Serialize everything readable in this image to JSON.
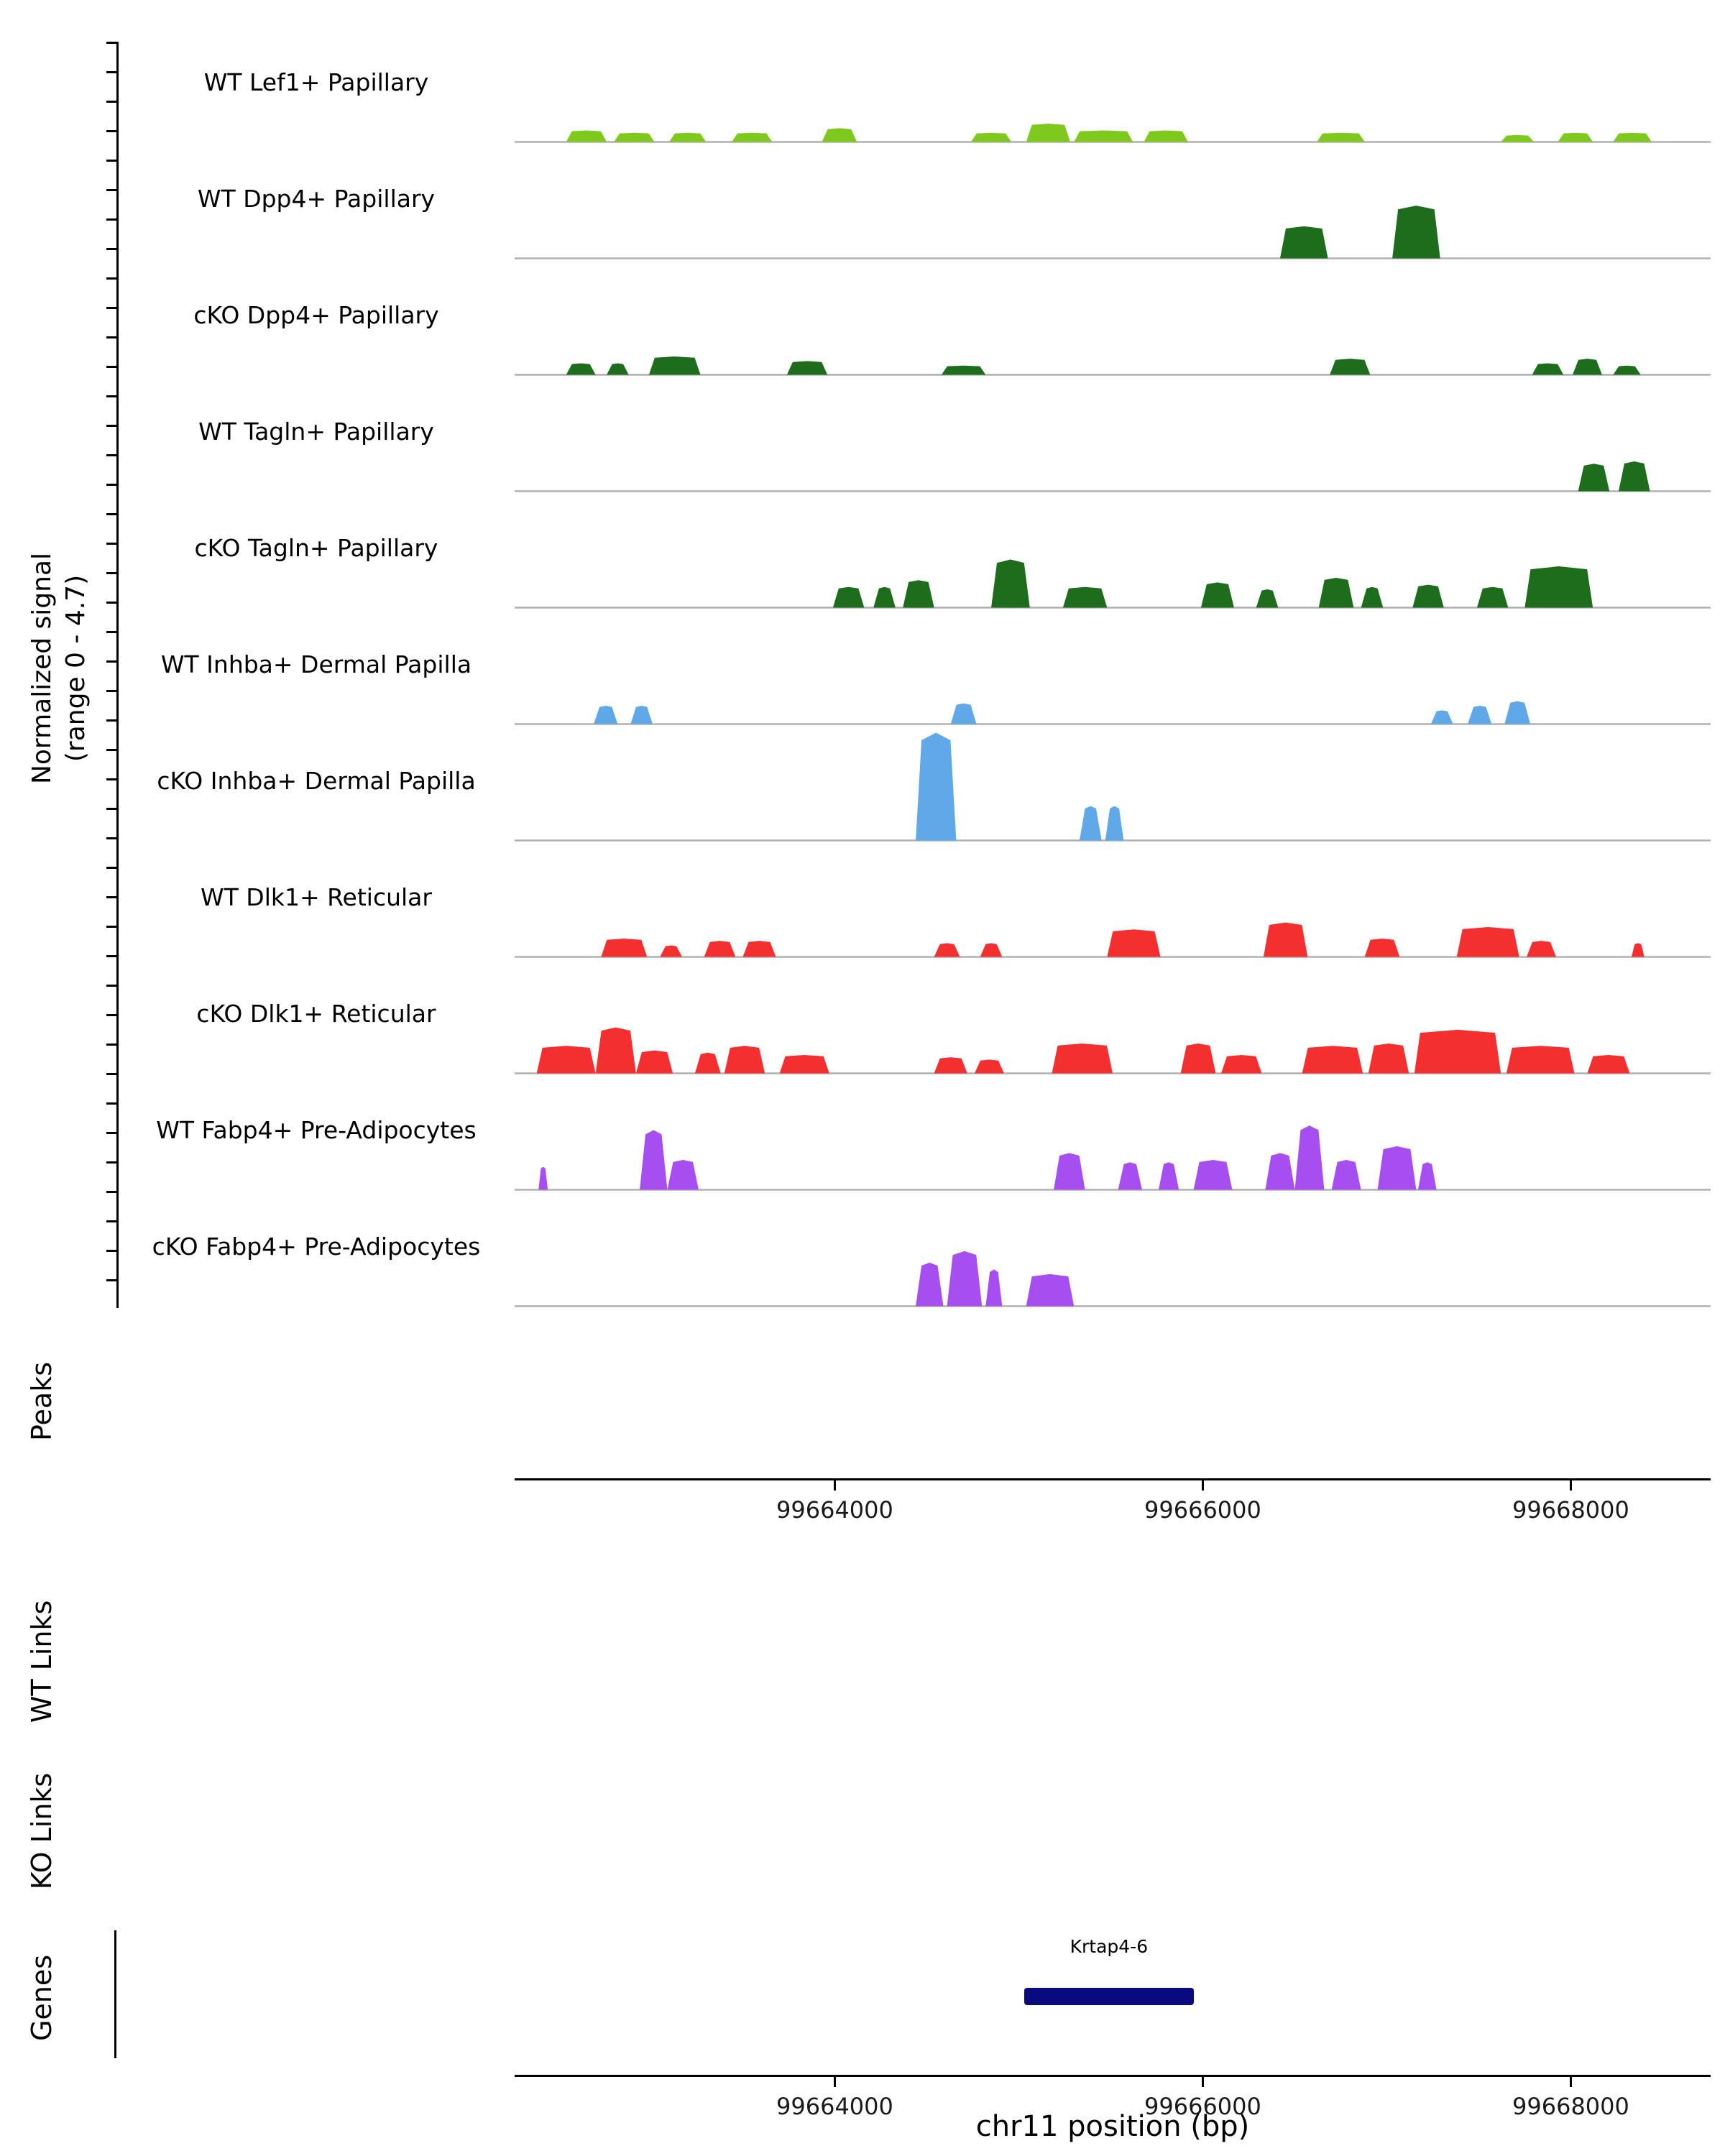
{
  "sections": {
    "peaks": "Peaks",
    "wt_links": "WT Links",
    "ko_links": "KO Links",
    "genes": "Genes"
  },
  "chart_data": {
    "type": "area",
    "region": {
      "chromosome": "chr11",
      "start": 99662260,
      "end": 99668760
    },
    "x_axis": {
      "label": "chr11 position (bp)",
      "ticks": [
        {
          "bp": 99664000,
          "label": "99664000"
        },
        {
          "bp": 99666000,
          "label": "99666000"
        },
        {
          "bp": 99668000,
          "label": "99668000"
        }
      ]
    },
    "y_axis": {
      "label_line1": "Normalized signal",
      "label_line2": "(range 0 - 4.7)",
      "range": [
        0,
        4.7
      ]
    },
    "segment_format": [
      "start_bp",
      "end_bp",
      "signal_value"
    ],
    "tracks": [
      {
        "label": "WT Lef1+ Papillary",
        "color": "#7fc91f",
        "segments": [
          [
            99662540,
            99662760,
            0.5
          ],
          [
            99662800,
            99663020,
            0.4
          ],
          [
            99663100,
            99663300,
            0.4
          ],
          [
            99663440,
            99663660,
            0.4
          ],
          [
            99663930,
            99664120,
            0.6
          ],
          [
            99664740,
            99664960,
            0.4
          ],
          [
            99665040,
            99665280,
            0.8
          ],
          [
            99665300,
            99665620,
            0.5
          ],
          [
            99665680,
            99665920,
            0.5
          ],
          [
            99666620,
            99666880,
            0.4
          ],
          [
            99667620,
            99667800,
            0.3
          ],
          [
            99667930,
            99668120,
            0.4
          ],
          [
            99668230,
            99668440,
            0.4
          ]
        ]
      },
      {
        "label": "WT Dpp4+ Papillary",
        "color": "#1d6d1d",
        "segments": [
          [
            99666420,
            99666680,
            1.4
          ],
          [
            99667030,
            99667290,
            2.3
          ]
        ]
      },
      {
        "label": "cKO Dpp4+ Papillary",
        "color": "#1d6d1d",
        "segments": [
          [
            99662540,
            99662700,
            0.5
          ],
          [
            99662760,
            99662880,
            0.5
          ],
          [
            99662990,
            99663270,
            0.8
          ],
          [
            99663740,
            99663960,
            0.6
          ],
          [
            99664580,
            99664820,
            0.4
          ],
          [
            99666690,
            99666910,
            0.7
          ],
          [
            99667790,
            99667960,
            0.5
          ],
          [
            99668010,
            99668170,
            0.7
          ],
          [
            99668230,
            99668380,
            0.4
          ]
        ]
      },
      {
        "label": "WT Tagln+ Papillary",
        "color": "#1d6d1d",
        "segments": [
          [
            99668040,
            99668210,
            1.2
          ],
          [
            99668260,
            99668430,
            1.3
          ]
        ]
      },
      {
        "label": "cKO Tagln+ Papillary",
        "color": "#1d6d1d",
        "segments": [
          [
            99663990,
            99664160,
            0.9
          ],
          [
            99664210,
            99664330,
            0.9
          ],
          [
            99664370,
            99664540,
            1.2
          ],
          [
            99664850,
            99665060,
            2.1
          ],
          [
            99665240,
            99665480,
            0.9
          ],
          [
            99665990,
            99666170,
            1.1
          ],
          [
            99666290,
            99666410,
            0.8
          ],
          [
            99666630,
            99666820,
            1.3
          ],
          [
            99666860,
            99666980,
            0.9
          ],
          [
            99667140,
            99667310,
            1.0
          ],
          [
            99667490,
            99667660,
            0.9
          ],
          [
            99667750,
            99668120,
            1.8
          ]
        ]
      },
      {
        "label": "WT Inhba+ Dermal Papilla",
        "color": "#61a8e8",
        "segments": [
          [
            99662690,
            99662820,
            0.8
          ],
          [
            99662890,
            99663010,
            0.8
          ],
          [
            99664630,
            99664770,
            0.9
          ],
          [
            99667240,
            99667360,
            0.6
          ],
          [
            99667440,
            99667570,
            0.8
          ],
          [
            99667640,
            99667780,
            1.0
          ]
        ]
      },
      {
        "label": "cKO Inhba+ Dermal Papilla",
        "color": "#61a8e8",
        "segments": [
          [
            99664440,
            99664660,
            4.7
          ],
          [
            99665330,
            99665450,
            1.5
          ],
          [
            99665470,
            99665570,
            1.5
          ]
        ]
      },
      {
        "label": "WT Dlk1+ Reticular",
        "color": "#f3302f",
        "segments": [
          [
            99662730,
            99662980,
            0.8
          ],
          [
            99663050,
            99663170,
            0.5
          ],
          [
            99663290,
            99663460,
            0.7
          ],
          [
            99663500,
            99663680,
            0.7
          ],
          [
            99664540,
            99664680,
            0.6
          ],
          [
            99664790,
            99664910,
            0.6
          ],
          [
            99665480,
            99665770,
            1.2
          ],
          [
            99666330,
            99666570,
            1.5
          ],
          [
            99666880,
            99667070,
            0.8
          ],
          [
            99667380,
            99667720,
            1.3
          ],
          [
            99667760,
            99667920,
            0.7
          ],
          [
            99668330,
            99668400,
            0.6
          ]
        ]
      },
      {
        "label": "cKO Dlk1+ Reticular",
        "color": "#f3302f",
        "segments": [
          [
            99662380,
            99662700,
            1.2
          ],
          [
            99662700,
            99662920,
            2.0
          ],
          [
            99662920,
            99663120,
            1.0
          ],
          [
            99663240,
            99663380,
            0.9
          ],
          [
            99663400,
            99663620,
            1.2
          ],
          [
            99663700,
            99663970,
            0.8
          ],
          [
            99664540,
            99664720,
            0.7
          ],
          [
            99664760,
            99664920,
            0.6
          ],
          [
            99665180,
            99665510,
            1.3
          ],
          [
            99665880,
            99666070,
            1.3
          ],
          [
            99666100,
            99666320,
            0.8
          ],
          [
            99666540,
            99666870,
            1.2
          ],
          [
            99666900,
            99667120,
            1.3
          ],
          [
            99667150,
            99667620,
            1.9
          ],
          [
            99667650,
            99668020,
            1.2
          ],
          [
            99668090,
            99668320,
            0.8
          ]
        ]
      },
      {
        "label": "WT Fabp4+ Pre-Adipocytes",
        "color": "#a64ef0",
        "segments": [
          [
            99662390,
            99662440,
            1.0
          ],
          [
            99662940,
            99663090,
            2.6
          ],
          [
            99663090,
            99663260,
            1.3
          ],
          [
            99665190,
            99665360,
            1.6
          ],
          [
            99665540,
            99665670,
            1.2
          ],
          [
            99665760,
            99665870,
            1.2
          ],
          [
            99665950,
            99666160,
            1.3
          ],
          [
            99666340,
            99666500,
            1.6
          ],
          [
            99666500,
            99666660,
            2.8
          ],
          [
            99666700,
            99666860,
            1.3
          ],
          [
            99666950,
            99667160,
            1.9
          ],
          [
            99667170,
            99667270,
            1.2
          ]
        ]
      },
      {
        "label": "cKO Fabp4+ Pre-Adipocytes",
        "color": "#a64ef0",
        "segments": [
          [
            99664440,
            99664590,
            1.9
          ],
          [
            99664610,
            99664800,
            2.4
          ],
          [
            99664820,
            99664910,
            1.6
          ],
          [
            99665040,
            99665300,
            1.4
          ]
        ]
      }
    ],
    "gene": {
      "name": "Krtap4-6",
      "start": 99665030,
      "end": 99665950,
      "color": "#0a0a80"
    }
  }
}
